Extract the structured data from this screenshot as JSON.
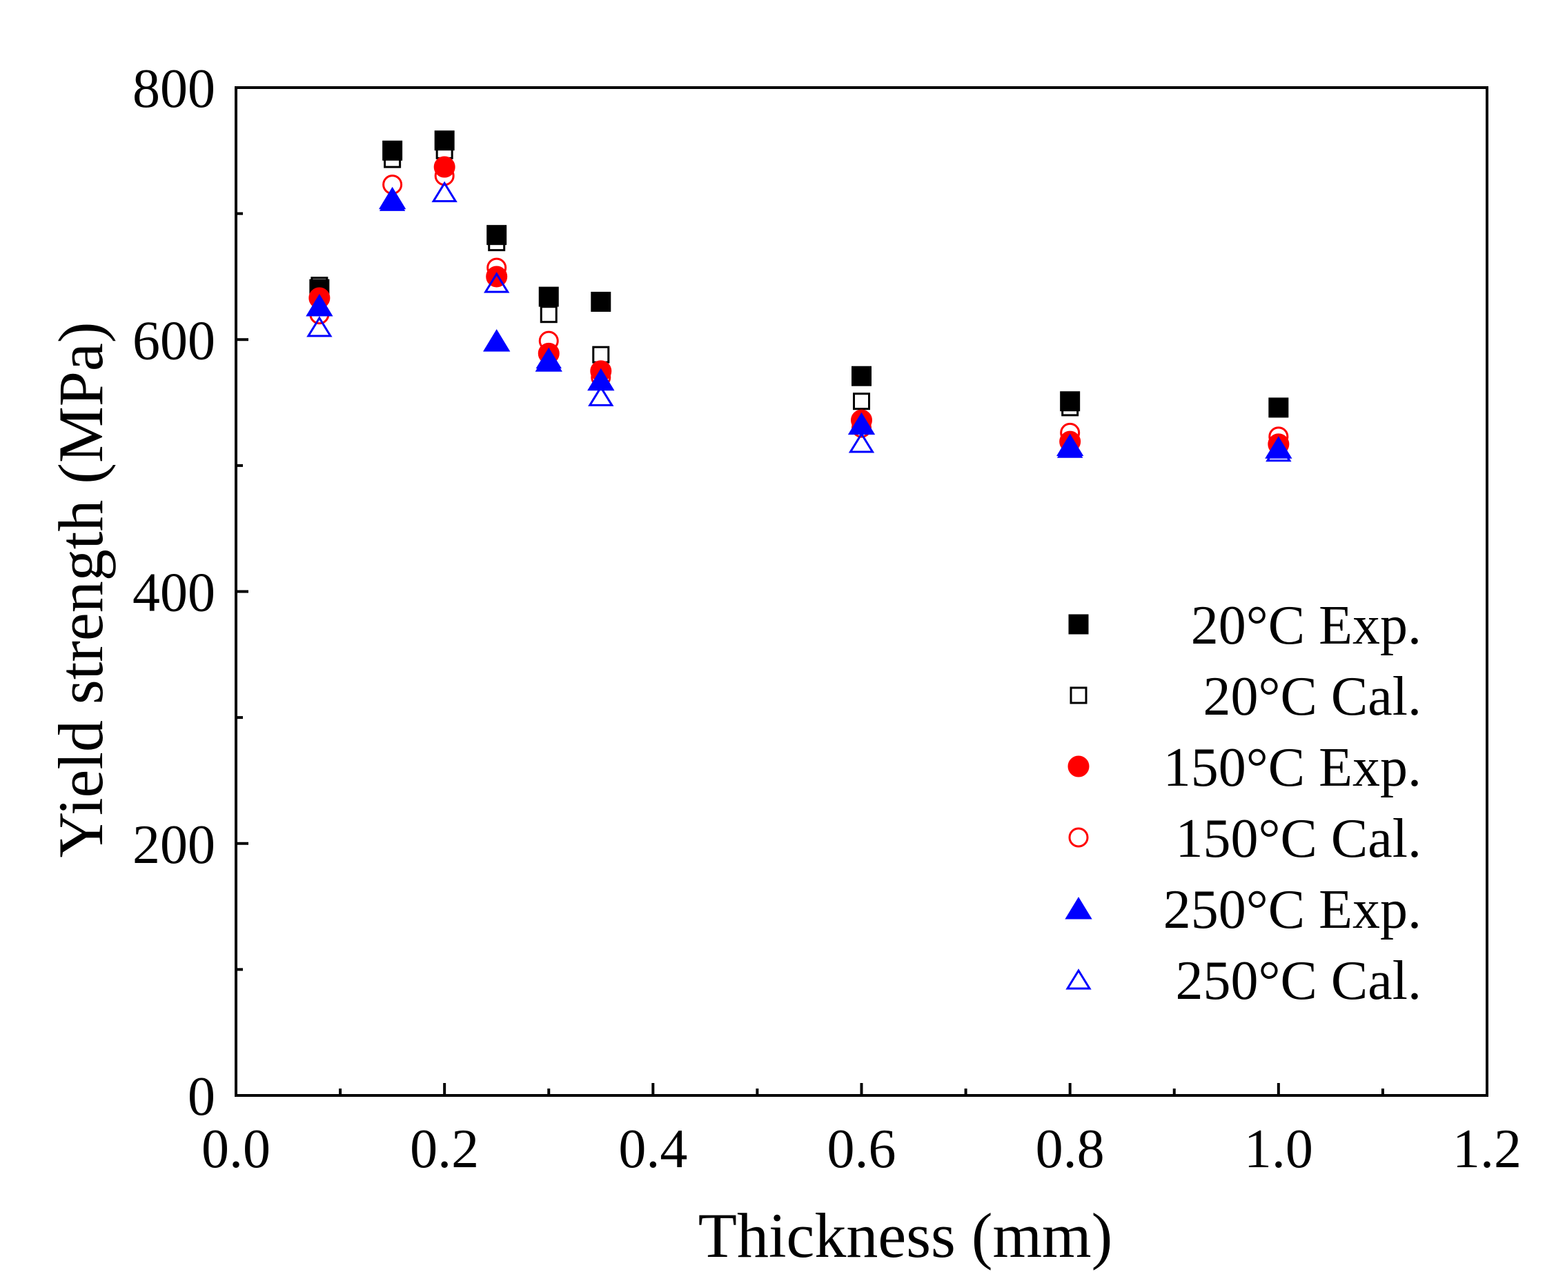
{
  "chart_data": {
    "type": "scatter",
    "xlabel": "Thickness (mm)",
    "ylabel": "Yield strength (MPa)",
    "xlim": [
      0.0,
      1.2
    ],
    "ylim": [
      0,
      800
    ],
    "x_ticks": [
      "0.0",
      "0.2",
      "0.4",
      "0.6",
      "0.8",
      "1.0",
      "1.2"
    ],
    "y_ticks": [
      "0",
      "200",
      "400",
      "600",
      "800"
    ],
    "grid": false,
    "legend_position": "right",
    "series": [
      {
        "name": "20°C Exp.",
        "marker": "square",
        "filled": true,
        "color": "#000000",
        "x": [
          0.08,
          0.15,
          0.2,
          0.25,
          0.3,
          0.35,
          0.6,
          0.8,
          1.0
        ],
        "y": [
          640,
          750,
          758,
          683,
          634,
          630,
          571,
          551,
          546
        ]
      },
      {
        "name": "20°C Cal.",
        "marker": "square",
        "filled": false,
        "color": "#000000",
        "x": [
          0.08,
          0.15,
          0.2,
          0.25,
          0.3,
          0.35,
          0.6,
          0.8,
          1.0
        ],
        "y": [
          643,
          743,
          750,
          677,
          620,
          588,
          551,
          546,
          545
        ]
      },
      {
        "name": "150°C Exp.",
        "marker": "circle",
        "filled": true,
        "color": "#ff0000",
        "x": [
          0.08,
          0.2,
          0.25,
          0.3,
          0.35,
          0.6,
          0.8,
          1.0
        ],
        "y": [
          633,
          737,
          650,
          589,
          575,
          536,
          519,
          517
        ]
      },
      {
        "name": "150°C Cal.",
        "marker": "circle",
        "filled": false,
        "color": "#ff0000",
        "x": [
          0.08,
          0.15,
          0.2,
          0.25,
          0.3,
          0.35,
          0.6,
          0.8,
          1.0
        ],
        "y": [
          620,
          723,
          730,
          657,
          599,
          570,
          530,
          526,
          523
        ]
      },
      {
        "name": "250°C Exp.",
        "marker": "triangle",
        "filled": true,
        "color": "#0000ff",
        "x": [
          0.08,
          0.15,
          0.25,
          0.3,
          0.35,
          0.6,
          0.8,
          1.0
        ],
        "y": [
          627,
          712,
          599,
          583,
          568,
          533,
          516,
          514
        ]
      },
      {
        "name": "250°C Cal.",
        "marker": "triangle",
        "filled": false,
        "color": "#0000ff",
        "x": [
          0.08,
          0.15,
          0.2,
          0.25,
          0.3,
          0.35,
          0.6,
          0.8,
          1.0
        ],
        "y": [
          610,
          710,
          717,
          645,
          585,
          555,
          518,
          514,
          511
        ]
      }
    ]
  }
}
